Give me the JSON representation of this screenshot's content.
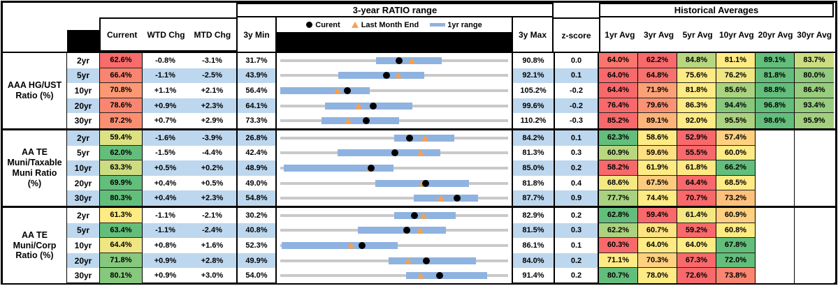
{
  "title_row": {
    "ratio_range_title": "3-year RATIO range",
    "historical_title": "Historical Averages"
  },
  "columns": {
    "current": "Current",
    "wtd": "WTD Chg",
    "mtd": "MTD Chg",
    "min": "3y Min",
    "max": "3y Max",
    "z": "z-score",
    "avgs": [
      "1yr Avg",
      "3yr Avg",
      "5yr Avg",
      "10yr Avg",
      "20yr Avg",
      "30yr Avg"
    ]
  },
  "legend": {
    "current": "Curent",
    "current_marker_icon": "black-dot",
    "last_month": "Last Month End",
    "last_month_marker_icon": "orange-triangle-up",
    "range": "1yr range",
    "range_marker_icon": "blue-bar"
  },
  "colors": {
    "scale_low": "#F8696B",
    "scale_mid": "#FFEB84",
    "scale_high": "#63BE7B",
    "stripe_blue": "#BDD7EE",
    "bar_blue": "#8FB3E0",
    "track_gray": "#C9C9C9",
    "marker_black": "#000000",
    "triangle_orange": "#F5A150"
  },
  "chart_data": {
    "type": "table",
    "note": "Each row also carries a dot-plot: gray track spans 3y Min..3y Max, blue bar is the 1yr range, black dot = Current, orange triangle = Last Month End (Current minus MTD Chg).",
    "groups": [
      {
        "label_lines": [
          "AAA HG/UST",
          "Ratio (%)"
        ],
        "rows": [
          {
            "tenor": "2yr",
            "current": "62.6%",
            "wtd": "-0.8%",
            "mtd": "-3.1%",
            "min3y": "31.7%",
            "max3y": "90.8%",
            "z": "0.0",
            "avgs": [
              "64.0%",
              "62.2%",
              "84.8%",
              "81.1%",
              "89.1%",
              "83.7%"
            ],
            "range_1yr": [
              56.5,
              73.5
            ]
          },
          {
            "tenor": "5yr",
            "current": "66.4%",
            "wtd": "-1.1%",
            "mtd": "-2.5%",
            "min3y": "43.9%",
            "max3y": "92.1%",
            "z": "0.1",
            "avgs": [
              "64.0%",
              "64.8%",
              "75.6%",
              "76.2%",
              "81.8%",
              "80.0%"
            ],
            "range_1yr": [
              56.1,
              74.3
            ]
          },
          {
            "tenor": "10yr",
            "current": "70.8%",
            "wtd": "+1.1%",
            "mtd": "+2.1%",
            "min3y": "56.4%",
            "max3y": "105.2%",
            "z": "-0.2",
            "avgs": [
              "64.4%",
              "71.9%",
              "81.8%",
              "85.6%",
              "88.8%",
              "86.4%"
            ],
            "range_1yr": [
              56.4,
              75.6
            ]
          },
          {
            "tenor": "20yr",
            "current": "78.6%",
            "wtd": "+0.9%",
            "mtd": "+2.3%",
            "min3y": "64.1%",
            "max3y": "99.6%",
            "z": "-0.2",
            "avgs": [
              "76.4%",
              "79.6%",
              "86.3%",
              "94.4%",
              "96.8%",
              "93.4%"
            ],
            "range_1yr": [
              71.1,
              84.7
            ]
          },
          {
            "tenor": "30yr",
            "current": "87.2%",
            "wtd": "+0.7%",
            "mtd": "+2.9%",
            "min3y": "73.3%",
            "max3y": "110.2%",
            "z": "-0.3",
            "avgs": [
              "85.2%",
              "89.1%",
              "92.0%",
              "95.5%",
              "98.6%",
              "95.9%"
            ],
            "range_1yr": [
              80.0,
              92.5
            ]
          }
        ]
      },
      {
        "label_lines": [
          "AA TE",
          "Muni/Taxable",
          "Muni Ratio",
          "(%)"
        ],
        "rows": [
          {
            "tenor": "2yr",
            "current": "59.4%",
            "wtd": "-1.6%",
            "mtd": "-3.9%",
            "min3y": "26.8%",
            "max3y": "84.2%",
            "z": "0.1",
            "avgs": [
              "62.3%",
              "58.6%",
              "52.9%",
              "57.4%",
              "",
              ""
            ],
            "range_1yr": [
              55.5,
              70.6
            ]
          },
          {
            "tenor": "5yr",
            "current": "62.0%",
            "wtd": "-1.5%",
            "mtd": "-4.4%",
            "min3y": "42.4%",
            "max3y": "81.3%",
            "z": "0.3",
            "avgs": [
              "60.9%",
              "59.6%",
              "55.5%",
              "60.0%",
              "",
              ""
            ],
            "range_1yr": [
              52.2,
              69.7
            ]
          },
          {
            "tenor": "10yr",
            "current": "63.3%",
            "wtd": "+0.5%",
            "mtd": "+0.2%",
            "min3y": "48.9%",
            "max3y": "85.0%",
            "z": "0.2",
            "avgs": [
              "58.2%",
              "61.9%",
              "61.8%",
              "66.2%",
              "",
              ""
            ],
            "range_1yr": [
              49.4,
              66.8
            ]
          },
          {
            "tenor": "20yr",
            "current": "69.9%",
            "wtd": "+0.4%",
            "mtd": "+0.5%",
            "min3y": "49.0%",
            "max3y": "81.8%",
            "z": "0.4",
            "avgs": [
              "68.6%",
              "67.5%",
              "64.4%",
              "68.5%",
              "",
              ""
            ],
            "range_1yr": [
              62.7,
              76.2
            ]
          },
          {
            "tenor": "30yr",
            "current": "80.3%",
            "wtd": "+0.4%",
            "mtd": "+2.3%",
            "min3y": "54.8%",
            "max3y": "87.7%",
            "z": "0.9",
            "avgs": [
              "77.7%",
              "74.4%",
              "70.7%",
              "73.2%",
              "",
              ""
            ],
            "range_1yr": [
              74.1,
              83.4
            ]
          }
        ]
      },
      {
        "label_lines": [
          "AA TE",
          "Muni/Corp",
          "Ratio (%)"
        ],
        "rows": [
          {
            "tenor": "2yr",
            "current": "61.3%",
            "wtd": "-1.1%",
            "mtd": "-2.1%",
            "min3y": "30.2%",
            "max3y": "82.9%",
            "z": "0.2",
            "avgs": [
              "62.8%",
              "59.4%",
              "61.4%",
              "60.9%",
              "",
              ""
            ],
            "range_1yr": [
              56.6,
              70.7
            ]
          },
          {
            "tenor": "5yr",
            "current": "63.4%",
            "wtd": "-1.1%",
            "mtd": "-2.4%",
            "min3y": "40.8%",
            "max3y": "81.5%",
            "z": "0.3",
            "avgs": [
              "62.2%",
              "60.7%",
              "59.2%",
              "60.8%",
              "",
              ""
            ],
            "range_1yr": [
              54.6,
              70.4
            ]
          },
          {
            "tenor": "10yr",
            "current": "64.4%",
            "wtd": "+0.8%",
            "mtd": "+1.6%",
            "min3y": "52.3%",
            "max3y": "86.1%",
            "z": "0.1",
            "avgs": [
              "60.3%",
              "64.0%",
              "64.0%",
              "67.8%",
              "",
              ""
            ],
            "range_1yr": [
              52.5,
              69.7
            ]
          },
          {
            "tenor": "20yr",
            "current": "71.8%",
            "wtd": "+0.9%",
            "mtd": "+2.8%",
            "min3y": "49.9%",
            "max3y": "84.0%",
            "z": "0.2",
            "avgs": [
              "71.1%",
              "70.3%",
              "67.3%",
              "72.0%",
              "",
              ""
            ],
            "range_1yr": [
              66.1,
              79.2
            ]
          },
          {
            "tenor": "30yr",
            "current": "80.1%",
            "wtd": "+0.9%",
            "mtd": "+3.0%",
            "min3y": "54.0%",
            "max3y": "91.4%",
            "z": "0.2",
            "avgs": [
              "80.7%",
              "78.0%",
              "72.6%",
              "73.8%",
              "",
              ""
            ],
            "range_1yr": [
              74.6,
              88.0
            ]
          }
        ]
      }
    ]
  }
}
